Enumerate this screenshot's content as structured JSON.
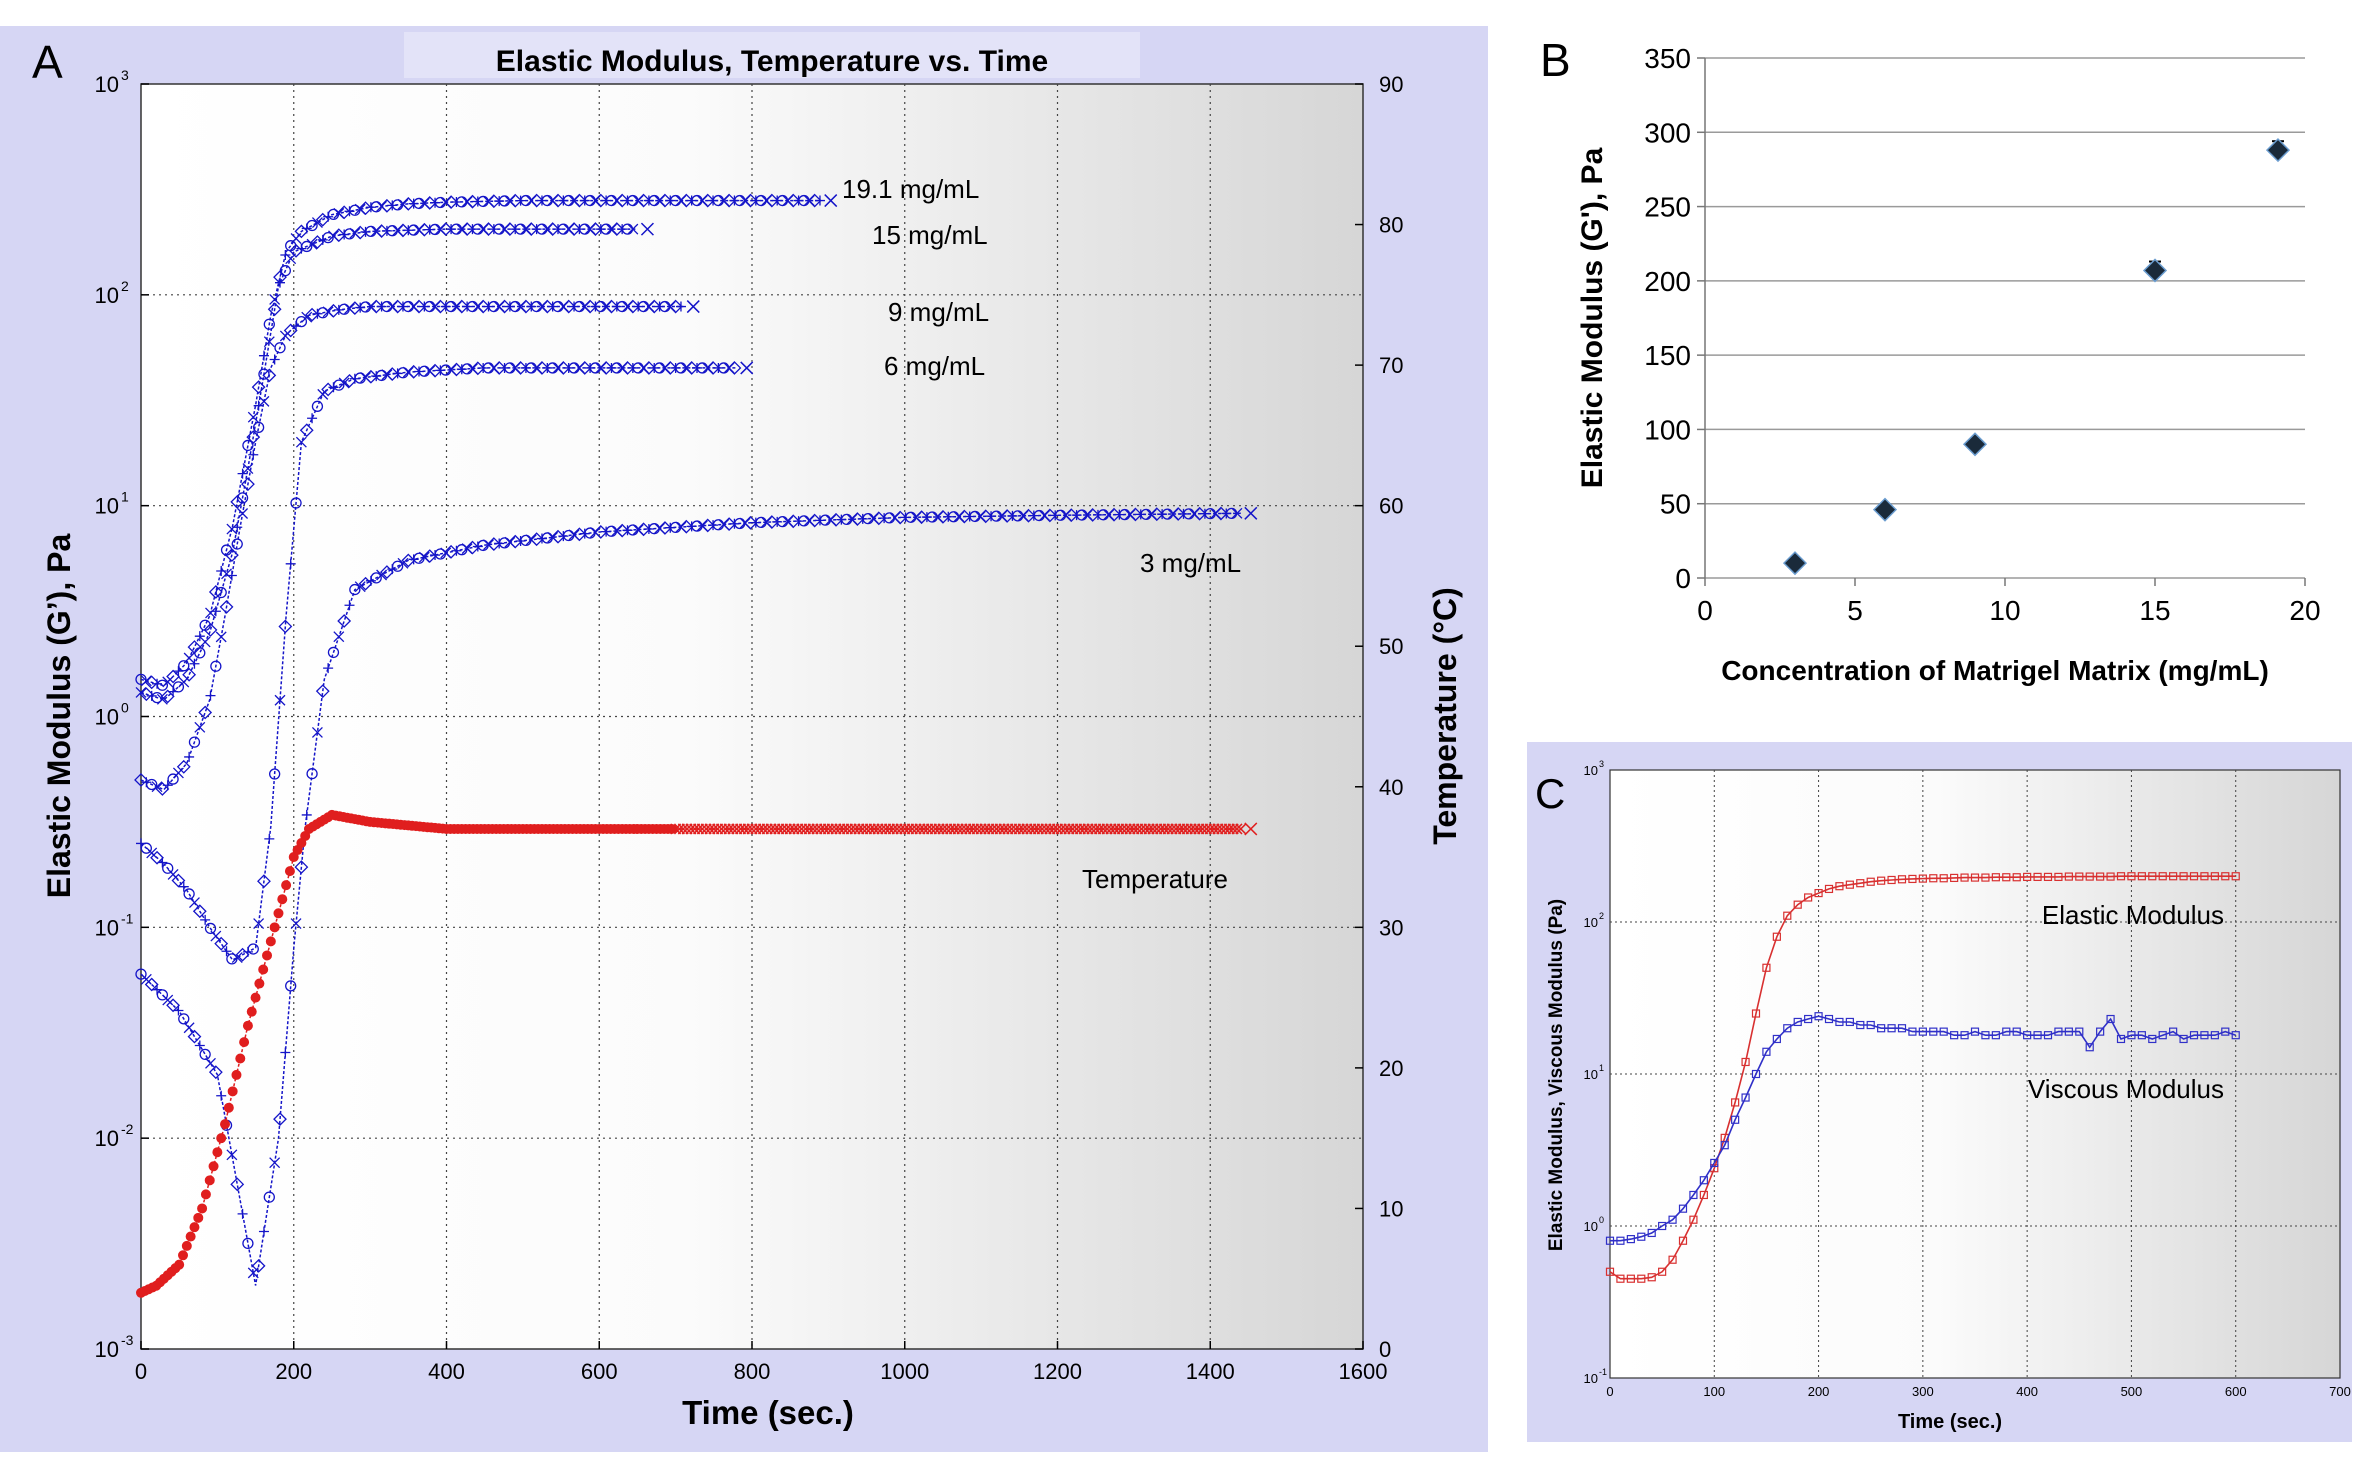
{
  "colors": {
    "panel_bg": "#d6d6f4",
    "blue": "#1414c8",
    "red": "#e01e1e",
    "red_c": "#d83030",
    "blue_c": "#3030c8",
    "grid": "#444444",
    "diamond": "#1a2a3a",
    "diamond_edge": "#6a9ccf"
  },
  "panel_a": {
    "letter": "A",
    "title": "Elastic Modulus, Temperature vs. Time",
    "xlabel": "Time (sec.)",
    "ylabel_left": "Elastic Modulus (G’), Pa",
    "ylabel_right": "Temperature (°C)",
    "x_ticks": [
      "0",
      "200",
      "400",
      "600",
      "800",
      "1000",
      "1200",
      "1400",
      "1600"
    ],
    "y_left_mantissa": [
      "10",
      "10",
      "10",
      "10",
      "10",
      "10",
      "10"
    ],
    "y_left_exponents": [
      "-3",
      "-2",
      "-1",
      "0",
      "1",
      "2",
      "3"
    ],
    "y_right_ticks": [
      "0",
      "10",
      "20",
      "30",
      "40",
      "50",
      "60",
      "70",
      "80",
      "90"
    ],
    "annotations": [
      "19.1 mg/mL",
      "15 mg/mL",
      "9 mg/mL",
      "6 mg/mL",
      "3 mg/mL",
      "Temperature"
    ]
  },
  "panel_b": {
    "letter": "B",
    "xlabel": "Concentration of Matrigel Matrix (mg/mL)",
    "ylabel": "Elastic  Modulus (G'), Pa",
    "x_ticks": [
      "0",
      "5",
      "10",
      "15",
      "20"
    ],
    "y_ticks": [
      "0",
      "50",
      "100",
      "150",
      "200",
      "250",
      "300",
      "350"
    ]
  },
  "panel_c": {
    "letter": "C",
    "xlabel": "Time (sec.)",
    "ylabel": "Elastic Modulus, Viscous Modulus (Pa)",
    "x_ticks": [
      "0",
      "100",
      "200",
      "300",
      "400",
      "500",
      "600",
      "700"
    ],
    "y_mantissa": [
      "10",
      "10",
      "10",
      "10"
    ],
    "y_exponents": [
      "-1",
      "0",
      "1",
      "3"
    ],
    "annotations": [
      "Elastic Modulus",
      "Viscous Modulus"
    ]
  },
  "chart_data": [
    {
      "type": "line",
      "title": "Elastic Modulus, Temperature vs. Time",
      "xlabel": "Time (sec.)",
      "ylabel": "Elastic Modulus (G’), Pa",
      "y2label": "Temperature (°C)",
      "xlim": [
        0,
        1600
      ],
      "ylim": [
        0.001,
        1000
      ],
      "yscale": "log",
      "y2lim": [
        0,
        90
      ],
      "grid": true,
      "series": [
        {
          "name": "19.1 mg/mL",
          "axis": "left",
          "x": [
            0,
            30,
            60,
            90,
            120,
            150,
            170,
            190,
            210,
            250,
            300,
            350,
            400,
            500,
            600,
            700,
            800,
            890
          ],
          "y": [
            1.5,
            1.4,
            1.8,
            3,
            8,
            30,
            80,
            160,
            200,
            240,
            260,
            270,
            275,
            280,
            280,
            280,
            280,
            280
          ]
        },
        {
          "name": "15 mg/mL",
          "axis": "left",
          "x": [
            0,
            30,
            60,
            90,
            120,
            140,
            160,
            180,
            200,
            250,
            300,
            400,
            500,
            600,
            650
          ],
          "y": [
            1.3,
            1.2,
            1.5,
            2.5,
            6,
            15,
            40,
            110,
            160,
            190,
            200,
            205,
            205,
            205,
            205
          ]
        },
        {
          "name": "9 mg/mL",
          "axis": "left",
          "x": [
            0,
            30,
            60,
            90,
            110,
            130,
            150,
            170,
            190,
            220,
            260,
            300,
            400,
            500,
            600,
            710
          ],
          "y": [
            0.5,
            0.45,
            0.6,
            1.2,
            3,
            8,
            20,
            45,
            65,
            80,
            85,
            88,
            88,
            88,
            88,
            88
          ]
        },
        {
          "name": "6 mg/mL",
          "axis": "left",
          "x": [
            0,
            30,
            60,
            90,
            120,
            150,
            170,
            190,
            210,
            240,
            280,
            350,
            450,
            550,
            650,
            780
          ],
          "y": [
            0.25,
            0.2,
            0.15,
            0.1,
            0.07,
            0.08,
            0.3,
            3,
            20,
            35,
            40,
            43,
            45,
            45,
            45,
            45
          ]
        },
        {
          "name": "3 mg/mL",
          "axis": "left",
          "x": [
            0,
            50,
            100,
            150,
            180,
            200,
            215,
            240,
            280,
            350,
            450,
            600,
            800,
            1000,
            1200,
            1440
          ],
          "y": [
            0.06,
            0.04,
            0.02,
            0.002,
            0.01,
            0.08,
            0.3,
            1.5,
            4,
            5.5,
            6.5,
            7.5,
            8.3,
            8.8,
            9.0,
            9.2
          ]
        },
        {
          "name": "Temperature",
          "axis": "right",
          "x": [
            0,
            20,
            50,
            80,
            110,
            140,
            170,
            200,
            220,
            250,
            300,
            400,
            600,
            800,
            1000,
            1200,
            1440
          ],
          "y": [
            4,
            4.5,
            6,
            10,
            16,
            23,
            29,
            35,
            37,
            38,
            37.5,
            37,
            37,
            37,
            37,
            37,
            37
          ]
        }
      ]
    },
    {
      "type": "scatter",
      "xlabel": "Concentration of Matrigel Matrix (mg/mL)",
      "ylabel": "Elastic  Modulus (G'), Pa",
      "xlim": [
        0,
        20
      ],
      "ylim": [
        0,
        350
      ],
      "grid": true,
      "x": [
        3,
        6,
        9,
        15,
        19.1
      ],
      "y": [
        10,
        46,
        90,
        207,
        288
      ],
      "error": [
        2,
        3,
        3,
        6,
        6
      ]
    },
    {
      "type": "line",
      "xlabel": "Time (sec.)",
      "ylabel": "Elastic Modulus, Viscous Modulus (Pa)",
      "xlim": [
        0,
        700
      ],
      "ylim": [
        0.1,
        1000
      ],
      "yscale": "log",
      "grid": true,
      "series": [
        {
          "name": "Elastic Modulus",
          "x": [
            0,
            10,
            20,
            30,
            40,
            50,
            60,
            70,
            80,
            90,
            100,
            110,
            120,
            130,
            140,
            150,
            160,
            170,
            180,
            190,
            200,
            210,
            220,
            230,
            240,
            250,
            260,
            270,
            280,
            290,
            300,
            310,
            320,
            330,
            340,
            350,
            360,
            370,
            380,
            390,
            400,
            410,
            420,
            430,
            440,
            450,
            460,
            470,
            480,
            490,
            500,
            510,
            520,
            530,
            540,
            550,
            560,
            570,
            580,
            590,
            600
          ],
          "y": [
            0.5,
            0.45,
            0.45,
            0.45,
            0.46,
            0.5,
            0.6,
            0.8,
            1.1,
            1.6,
            2.4,
            3.8,
            6.5,
            12,
            25,
            50,
            80,
            110,
            130,
            145,
            155,
            165,
            172,
            176,
            180,
            184,
            187,
            189,
            191,
            192,
            193,
            194,
            194,
            195,
            196,
            196,
            196,
            197,
            197,
            197,
            198,
            198,
            198,
            198,
            199,
            199,
            199,
            199,
            199,
            200,
            200,
            200,
            200,
            200,
            200,
            200,
            200,
            200,
            200,
            200,
            200
          ]
        },
        {
          "name": "Viscous Modulus",
          "x": [
            0,
            10,
            20,
            30,
            40,
            50,
            60,
            70,
            80,
            90,
            100,
            110,
            120,
            130,
            140,
            150,
            160,
            170,
            180,
            190,
            200,
            210,
            220,
            230,
            240,
            250,
            260,
            270,
            280,
            290,
            300,
            310,
            320,
            330,
            340,
            350,
            360,
            370,
            380,
            390,
            400,
            410,
            420,
            430,
            440,
            450,
            460,
            470,
            480,
            490,
            500,
            510,
            520,
            530,
            540,
            550,
            560,
            570,
            580,
            590,
            600
          ],
          "y": [
            0.8,
            0.8,
            0.82,
            0.85,
            0.9,
            1.0,
            1.1,
            1.3,
            1.6,
            2.0,
            2.6,
            3.4,
            5,
            7,
            10,
            14,
            17,
            20,
            22,
            23,
            24,
            23,
            22,
            22,
            21,
            21,
            20,
            20,
            20,
            19,
            19,
            19,
            19,
            18,
            18,
            19,
            18,
            18,
            19,
            19,
            18,
            18,
            18,
            19,
            19,
            19,
            15,
            19,
            23,
            17,
            18,
            18,
            17,
            18,
            19,
            17,
            18,
            18,
            18,
            19,
            18
          ]
        }
      ]
    }
  ]
}
